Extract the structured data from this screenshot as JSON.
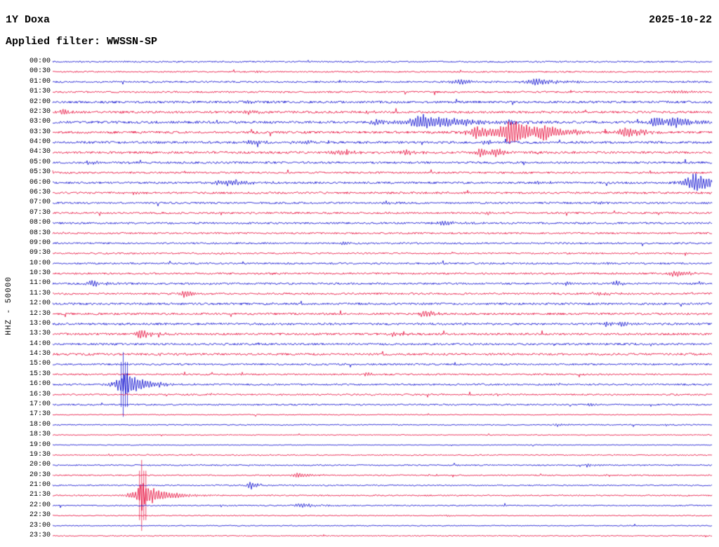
{
  "header": {
    "station": "1Y Doxa",
    "date": "2025-10-22",
    "filter_label": "Applied filter: WWSSN-SP"
  },
  "axis": {
    "y_label": "HHZ - 50000"
  },
  "chart_data": {
    "type": "line",
    "title": "Helicorder day plot, station 1Y Doxa, channel HHZ, 2025-10-22, WWSSN-SP filter",
    "row_interval_minutes": 30,
    "scale_label": "HHZ - 50000",
    "colors": {
      "blue": "#0000cd",
      "red": "#e60033"
    },
    "rows": [
      {
        "label": "00:00",
        "color": "blue",
        "noise": 1.0,
        "events": []
      },
      {
        "label": "00:30",
        "color": "red",
        "noise": 1.0,
        "events": [
          {
            "x": 0.31,
            "a": 2,
            "d": 0.01
          }
        ]
      },
      {
        "label": "01:00",
        "color": "blue",
        "noise": 1.2,
        "events": [
          {
            "x": 0.615,
            "a": 5,
            "d": 0.02
          },
          {
            "x": 0.73,
            "a": 6,
            "d": 0.035
          }
        ]
      },
      {
        "label": "01:30",
        "color": "red",
        "noise": 1.2,
        "events": [
          {
            "x": 0.95,
            "a": 3,
            "d": 0.02
          }
        ]
      },
      {
        "label": "02:00",
        "color": "blue",
        "noise": 1.6,
        "events": [
          {
            "x": 0.3,
            "a": 2.5,
            "d": 0.015
          }
        ]
      },
      {
        "label": "02:30",
        "color": "red",
        "noise": 1.6,
        "events": [
          {
            "x": 0.016,
            "a": 4,
            "d": 0.012
          },
          {
            "x": 0.295,
            "a": 3,
            "d": 0.02
          },
          {
            "x": 0.48,
            "a": 2,
            "d": 0.01
          }
        ]
      },
      {
        "label": "03:00",
        "color": "blue",
        "noise": 1.7,
        "events": [
          {
            "x": 0.49,
            "a": 5,
            "d": 0.015
          },
          {
            "x": 0.558,
            "a": 13,
            "d": 0.06
          },
          {
            "x": 0.69,
            "a": 4,
            "d": 0.01
          },
          {
            "x": 0.915,
            "a": 9,
            "d": 0.022
          },
          {
            "x": 0.945,
            "a": 8,
            "d": 0.018
          }
        ]
      },
      {
        "label": "03:30",
        "color": "red",
        "noise": 1.7,
        "events": [
          {
            "x": 0.64,
            "a": 12,
            "d": 0.028
          },
          {
            "x": 0.693,
            "a": 22,
            "d": 0.03
          },
          {
            "x": 0.745,
            "a": 9,
            "d": 0.035
          },
          {
            "x": 0.868,
            "a": 9,
            "d": 0.025
          }
        ]
      },
      {
        "label": "04:00",
        "color": "blue",
        "noise": 1.6,
        "events": [
          {
            "x": 0.3,
            "a": 4,
            "d": 0.02
          },
          {
            "x": 0.385,
            "a": 3,
            "d": 0.015
          },
          {
            "x": 0.655,
            "a": 3,
            "d": 0.02
          }
        ]
      },
      {
        "label": "04:30",
        "color": "red",
        "noise": 1.6,
        "events": [
          {
            "x": 0.435,
            "a": 6,
            "d": 0.02
          },
          {
            "x": 0.535,
            "a": 4,
            "d": 0.018
          },
          {
            "x": 0.648,
            "a": 8,
            "d": 0.012
          },
          {
            "x": 0.672,
            "a": 7,
            "d": 0.012
          }
        ]
      },
      {
        "label": "05:00",
        "color": "blue",
        "noise": 1.4,
        "events": [
          {
            "x": 0.055,
            "a": 3,
            "d": 0.012
          }
        ]
      },
      {
        "label": "05:30",
        "color": "red",
        "noise": 1.3,
        "events": []
      },
      {
        "label": "06:00",
        "color": "blue",
        "noise": 1.4,
        "events": [
          {
            "x": 0.26,
            "a": 5,
            "d": 0.04
          },
          {
            "x": 0.735,
            "a": 4,
            "d": 0.012
          },
          {
            "x": 0.972,
            "a": 16,
            "d": 0.035
          }
        ]
      },
      {
        "label": "06:30",
        "color": "red",
        "noise": 1.4,
        "events": [
          {
            "x": 0.12,
            "a": 3,
            "d": 0.015
          }
        ]
      },
      {
        "label": "07:00",
        "color": "blue",
        "noise": 1.3,
        "events": [
          {
            "x": 0.505,
            "a": 3,
            "d": 0.012
          },
          {
            "x": 0.825,
            "a": 2.5,
            "d": 0.01
          }
        ]
      },
      {
        "label": "07:30",
        "color": "red",
        "noise": 1.3,
        "events": [
          {
            "x": 0.66,
            "a": 3,
            "d": 0.008
          }
        ]
      },
      {
        "label": "08:00",
        "color": "blue",
        "noise": 1.3,
        "events": [
          {
            "x": 0.59,
            "a": 3.5,
            "d": 0.025
          }
        ]
      },
      {
        "label": "08:30",
        "color": "red",
        "noise": 1.2,
        "events": []
      },
      {
        "label": "09:00",
        "color": "blue",
        "noise": 1.2,
        "events": [
          {
            "x": 0.44,
            "a": 2.5,
            "d": 0.012
          }
        ]
      },
      {
        "label": "09:30",
        "color": "red",
        "noise": 1.1,
        "events": []
      },
      {
        "label": "10:00",
        "color": "blue",
        "noise": 1.2,
        "events": [
          {
            "x": 0.84,
            "a": 2,
            "d": 0.01
          }
        ]
      },
      {
        "label": "10:30",
        "color": "red",
        "noise": 1.3,
        "events": [
          {
            "x": 0.945,
            "a": 6,
            "d": 0.022
          }
        ]
      },
      {
        "label": "11:00",
        "color": "blue",
        "noise": 1.3,
        "events": [
          {
            "x": 0.058,
            "a": 5,
            "d": 0.018
          },
          {
            "x": 0.78,
            "a": 3.5,
            "d": 0.01
          },
          {
            "x": 0.855,
            "a": 4.5,
            "d": 0.012
          }
        ]
      },
      {
        "label": "11:30",
        "color": "red",
        "noise": 1.3,
        "events": [
          {
            "x": 0.2,
            "a": 6,
            "d": 0.015
          },
          {
            "x": 0.825,
            "a": 3.5,
            "d": 0.02
          }
        ]
      },
      {
        "label": "12:00",
        "color": "blue",
        "noise": 1.5,
        "events": []
      },
      {
        "label": "12:30",
        "color": "red",
        "noise": 1.5,
        "events": [
          {
            "x": 0.565,
            "a": 7,
            "d": 0.015
          }
        ]
      },
      {
        "label": "13:00",
        "color": "blue",
        "noise": 1.5,
        "events": [
          {
            "x": 0.838,
            "a": 3.5,
            "d": 0.01
          },
          {
            "x": 0.862,
            "a": 4.5,
            "d": 0.01
          }
        ]
      },
      {
        "label": "13:30",
        "color": "red",
        "noise": 1.5,
        "events": [
          {
            "x": 0.132,
            "a": 8,
            "d": 0.018
          },
          {
            "x": 0.515,
            "a": 4,
            "d": 0.012
          }
        ]
      },
      {
        "label": "14:00",
        "color": "blue",
        "noise": 1.4,
        "events": []
      },
      {
        "label": "14:30",
        "color": "red",
        "noise": 1.5,
        "events": []
      },
      {
        "label": "15:00",
        "color": "blue",
        "noise": 1.2,
        "events": []
      },
      {
        "label": "15:30",
        "color": "red",
        "noise": 1.2,
        "events": [
          {
            "x": 0.475,
            "a": 3,
            "d": 0.01
          }
        ]
      },
      {
        "label": "16:00",
        "color": "blue",
        "noise": 1.2,
        "events": [
          {
            "x": 0.107,
            "a": 20,
            "d": 0.03,
            "tall": true
          }
        ]
      },
      {
        "label": "16:30",
        "color": "red",
        "noise": 1.1,
        "events": []
      },
      {
        "label": "17:00",
        "color": "blue",
        "noise": 1.1,
        "events": [
          {
            "x": 0.815,
            "a": 2.5,
            "d": 0.01
          }
        ]
      },
      {
        "label": "17:30",
        "color": "red",
        "noise": 0.7,
        "events": []
      },
      {
        "label": "18:00",
        "color": "blue",
        "noise": 0.8,
        "events": [
          {
            "x": 0.765,
            "a": 2.2,
            "d": 0.012
          },
          {
            "x": 0.93,
            "a": 2.2,
            "d": 0.008
          }
        ]
      },
      {
        "label": "18:30",
        "color": "red",
        "noise": 0.6,
        "events": []
      },
      {
        "label": "19:00",
        "color": "blue",
        "noise": 0.6,
        "events": []
      },
      {
        "label": "19:30",
        "color": "red",
        "noise": 0.8,
        "events": [
          {
            "x": 0.085,
            "a": 1.5,
            "d": 0.008
          }
        ]
      },
      {
        "label": "20:00",
        "color": "blue",
        "noise": 0.9,
        "events": [
          {
            "x": 0.81,
            "a": 2.5,
            "d": 0.01
          }
        ]
      },
      {
        "label": "20:30",
        "color": "red",
        "noise": 0.9,
        "events": [
          {
            "x": 0.37,
            "a": 5,
            "d": 0.015
          }
        ]
      },
      {
        "label": "21:00",
        "color": "blue",
        "noise": 0.9,
        "events": [
          {
            "x": 0.3,
            "a": 7,
            "d": 0.01
          }
        ]
      },
      {
        "label": "21:30",
        "color": "red",
        "noise": 0.9,
        "events": [
          {
            "x": 0.135,
            "a": 22,
            "d": 0.03,
            "tall": true
          }
        ]
      },
      {
        "label": "22:00",
        "color": "blue",
        "noise": 0.9,
        "events": [
          {
            "x": 0.375,
            "a": 4,
            "d": 0.025
          }
        ]
      },
      {
        "label": "22:30",
        "color": "red",
        "noise": 0.7,
        "events": [
          {
            "x": 0.6,
            "a": 2,
            "d": 0.008
          }
        ]
      },
      {
        "label": "23:00",
        "color": "blue",
        "noise": 0.7,
        "events": []
      },
      {
        "label": "23:30",
        "color": "red",
        "noise": 0.7,
        "events": []
      }
    ]
  }
}
